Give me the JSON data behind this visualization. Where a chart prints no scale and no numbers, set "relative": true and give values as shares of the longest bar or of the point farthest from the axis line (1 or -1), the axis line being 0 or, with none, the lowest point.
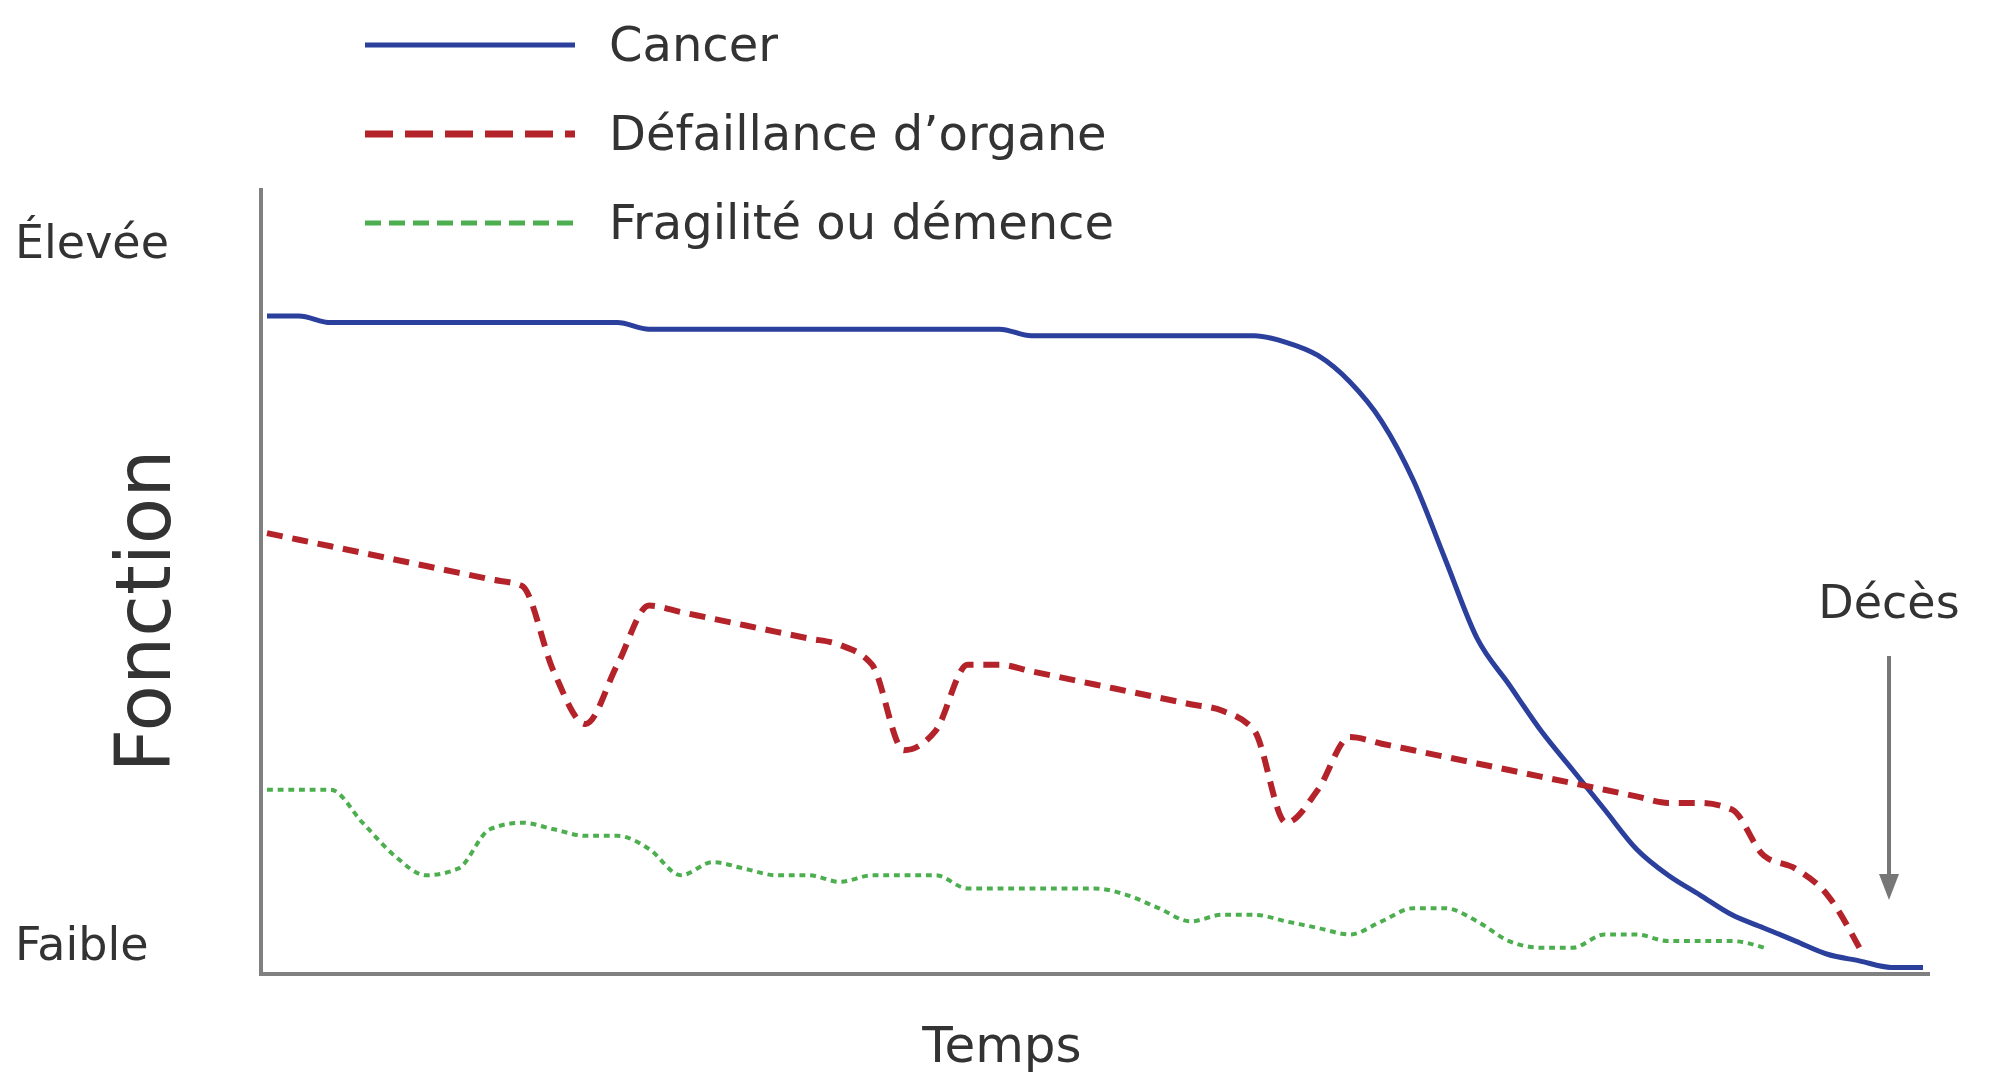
{
  "chart_data": {
    "type": "line",
    "relative": true,
    "xlabel": "Temps",
    "ylabel": "Fonction",
    "legend": "top left",
    "annotations": [
      "Élevée",
      "Faible",
      "Décès"
    ],
    "categories": [
      null,
      null,
      null,
      null,
      null,
      null,
      null,
      null,
      null,
      null,
      null,
      null,
      null,
      null,
      null,
      null,
      null,
      null,
      null,
      null,
      null,
      null,
      null,
      null,
      null,
      null,
      null,
      null,
      null,
      null,
      null,
      null,
      null,
      null,
      null,
      null,
      null,
      null,
      null,
      null,
      null,
      null,
      null,
      null,
      null,
      null,
      null,
      null,
      null,
      null,
      null,
      null,
      null
    ],
    "series": [
      {
        "name": "Cancer",
        "color": "#2b3f9c",
        "line_style": "solid",
        "values": [
          1.0,
          1.0,
          0.99,
          0.99,
          0.99,
          0.99,
          0.99,
          0.99,
          0.99,
          0.99,
          0.99,
          0.99,
          0.98,
          0.98,
          0.98,
          0.98,
          0.98,
          0.98,
          0.98,
          0.98,
          0.98,
          0.98,
          0.98,
          0.98,
          0.97,
          0.97,
          0.97,
          0.97,
          0.97,
          0.97,
          0.97,
          0.97,
          0.96,
          0.94,
          0.9,
          0.84,
          0.75,
          0.63,
          0.51,
          0.44,
          0.37,
          0.31,
          0.25,
          0.19,
          0.15,
          0.12,
          0.09,
          0.07,
          0.05,
          0.03,
          0.02,
          0.01,
          0.01
        ]
      },
      {
        "name": "Défaillance d’organe",
        "color": "#b5232a",
        "line_style": "dashed",
        "values": [
          0.67,
          0.66,
          0.65,
          0.64,
          0.63,
          0.62,
          0.61,
          0.6,
          0.59,
          0.46,
          0.38,
          0.47,
          0.56,
          0.55,
          0.54,
          0.53,
          0.52,
          0.51,
          0.5,
          0.47,
          0.34,
          0.37,
          0.47,
          0.47,
          0.46,
          0.45,
          0.44,
          0.43,
          0.42,
          0.41,
          0.4,
          0.37,
          0.23,
          0.28,
          0.36,
          0.35,
          0.34,
          0.33,
          0.32,
          0.31,
          0.3,
          0.29,
          0.28,
          0.27,
          0.26,
          0.26,
          0.25,
          0.18,
          0.16,
          0.12,
          0.04,
          null,
          null
        ]
      },
      {
        "name": "Fragilité ou démence",
        "color": "#4cae4f",
        "line_style": "dotted",
        "values": [
          0.28,
          0.28,
          0.28,
          0.23,
          0.18,
          0.15,
          0.16,
          0.22,
          0.23,
          0.22,
          0.21,
          0.21,
          0.19,
          0.15,
          0.17,
          0.16,
          0.15,
          0.15,
          0.14,
          0.15,
          0.15,
          0.15,
          0.13,
          0.13,
          0.13,
          0.13,
          0.13,
          0.12,
          0.1,
          0.08,
          0.09,
          0.09,
          0.08,
          0.07,
          0.06,
          0.08,
          0.1,
          0.1,
          0.08,
          0.05,
          0.04,
          0.04,
          0.06,
          0.06,
          0.05,
          0.05,
          0.05,
          0.04,
          null,
          null,
          null,
          null,
          null
        ]
      }
    ]
  }
}
